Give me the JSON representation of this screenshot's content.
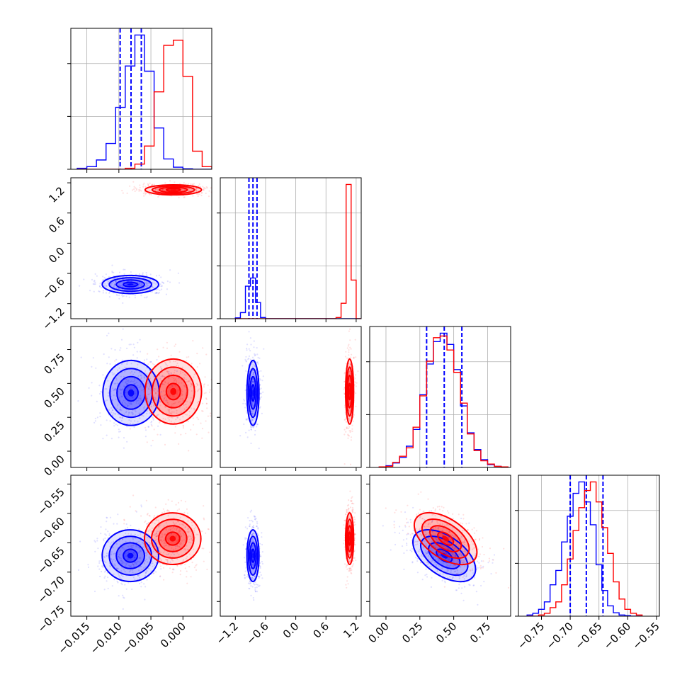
{
  "figure": {
    "type": "corner",
    "colors": {
      "series_a": "#0000ff",
      "series_b": "#ff0000",
      "grid": "#b0b0b0",
      "axes": "#000000"
    },
    "notes": "corner plot of 4 parameters, two posterior sample sets"
  },
  "chart_data": [
    {
      "type": "histogram",
      "panel": "hist-p1",
      "xlim": [
        -0.0175,
        0.0045
      ],
      "grid": true,
      "x_tick_labels_bottom": [],
      "bins": [
        -0.0165,
        -0.015,
        -0.0135,
        -0.012,
        -0.0105,
        -0.009,
        -0.0075,
        -0.006,
        -0.0045,
        -0.003,
        -0.0015,
        0.0,
        0.0015,
        0.003,
        0.0045
      ],
      "series": [
        {
          "color": "#0000ff",
          "counts": [
            2,
            5,
            18,
            50,
            120,
            200,
            260,
            190,
            80,
            20,
            4,
            1,
            0,
            0
          ],
          "quantiles": [
            -0.0098,
            -0.0081,
            -0.0065
          ]
        },
        {
          "color": "#ff0000",
          "counts": [
            0,
            0,
            0,
            0,
            0,
            2,
            10,
            45,
            150,
            240,
            250,
            180,
            35,
            5
          ],
          "quantiles": []
        }
      ]
    },
    {
      "type": "scatter-contour",
      "panel": "p1-vs-p2",
      "xlim": [
        -0.0175,
        0.0045
      ],
      "ylim": [
        -1.5,
        1.3
      ],
      "y_tick_labels": [
        "1.2",
        "0.6",
        "0.0",
        "−0.6",
        "−1.2"
      ],
      "y_ticks": [
        1.2,
        0.6,
        0.0,
        -0.6,
        -1.2
      ],
      "series": [
        {
          "color": "#0000ff",
          "center": [
            -0.0082,
            -0.82
          ],
          "spread": [
            0.0022,
            0.09
          ]
        },
        {
          "color": "#ff0000",
          "center": [
            -0.0015,
            1.06
          ],
          "spread": [
            0.0022,
            0.05
          ]
        }
      ]
    },
    {
      "type": "histogram",
      "panel": "hist-p2",
      "xlim": [
        -1.5,
        1.3
      ],
      "grid": true,
      "bins": [
        -1.2,
        -1.1,
        -1.0,
        -0.9,
        -0.8,
        -0.7,
        -0.6,
        -0.5,
        -0.4,
        -0.3,
        -0.2,
        -0.1,
        0.0,
        0.1,
        0.2,
        0.3,
        0.4,
        0.5,
        0.6,
        0.7,
        0.8,
        0.9,
        1.0,
        1.1,
        1.2,
        1.3
      ],
      "series": [
        {
          "color": "#0000ff",
          "counts": [
            2,
            15,
            80,
            100,
            40,
            3,
            0,
            0,
            0,
            0,
            0,
            0,
            0,
            0,
            0,
            0,
            0,
            0,
            0,
            0,
            0,
            0,
            0,
            0,
            0
          ],
          "quantiles": [
            -0.93,
            -0.85,
            -0.77
          ]
        },
        {
          "color": "#ff0000",
          "counts": [
            0,
            0,
            0,
            0,
            0,
            0,
            0,
            0,
            0,
            0,
            0,
            0,
            0,
            0,
            0,
            0,
            0,
            0,
            0,
            0,
            3,
            38,
            330,
            95,
            0
          ],
          "quantiles": []
        }
      ]
    },
    {
      "type": "scatter-contour",
      "panel": "p1-vs-p3",
      "xlim": [
        -0.0175,
        0.0045
      ],
      "ylim": [
        -0.12,
        0.92
      ],
      "y_tick_labels": [
        "0.75",
        "0.50",
        "0.25",
        "0.00"
      ],
      "y_ticks": [
        0.75,
        0.5,
        0.25,
        0.0
      ],
      "series": [
        {
          "color": "#0000ff",
          "center": [
            -0.0081,
            0.43
          ],
          "spread": [
            0.0022,
            0.12
          ]
        },
        {
          "color": "#ff0000",
          "center": [
            -0.0015,
            0.44
          ],
          "spread": [
            0.0022,
            0.12
          ]
        }
      ]
    },
    {
      "type": "scatter-contour",
      "panel": "p2-vs-p3",
      "xlim": [
        -1.5,
        1.3
      ],
      "ylim": [
        -0.12,
        0.92
      ],
      "series": [
        {
          "color": "#0000ff",
          "center": [
            -0.85,
            0.43
          ],
          "spread": [
            0.06,
            0.12
          ]
        },
        {
          "color": "#ff0000",
          "center": [
            1.07,
            0.44
          ],
          "spread": [
            0.04,
            0.12
          ]
        }
      ]
    },
    {
      "type": "histogram",
      "panel": "hist-p3",
      "xlim": [
        -0.12,
        0.92
      ],
      "grid": true,
      "bins": [
        -0.05,
        0.0,
        0.05,
        0.1,
        0.15,
        0.2,
        0.25,
        0.3,
        0.35,
        0.4,
        0.45,
        0.5,
        0.55,
        0.6,
        0.65,
        0.7,
        0.75,
        0.8,
        0.85,
        0.9
      ],
      "series": [
        {
          "color": "#0000ff",
          "counts": [
            1,
            3,
            8,
            18,
            38,
            68,
            130,
            185,
            225,
            240,
            220,
            175,
            110,
            62,
            32,
            14,
            5,
            2,
            1
          ],
          "quantiles": [
            0.3,
            0.43,
            0.56
          ]
        },
        {
          "color": "#ff0000",
          "counts": [
            1,
            2,
            9,
            20,
            35,
            72,
            128,
            190,
            232,
            235,
            210,
            170,
            115,
            60,
            30,
            12,
            6,
            2,
            1
          ],
          "quantiles": []
        }
      ]
    },
    {
      "type": "scatter-contour",
      "panel": "p1-vs-p4",
      "xlim": [
        -0.0175,
        0.0045
      ],
      "ylim": [
        -0.775,
        -0.535
      ],
      "x_tick_labels": [
        "−0.015",
        "−0.010",
        "−0.005",
        "0.000"
      ],
      "x_ticks": [
        -0.015,
        -0.01,
        -0.005,
        0.0
      ],
      "y_tick_labels": [
        "−0.55",
        "−0.60",
        "−0.65",
        "−0.70",
        "−0.75"
      ],
      "y_ticks": [
        -0.55,
        -0.6,
        -0.65,
        -0.7,
        -0.75
      ],
      "series": [
        {
          "color": "#0000ff",
          "center": [
            -0.0082,
            -0.672
          ],
          "spread": [
            0.0022,
            0.022
          ]
        },
        {
          "color": "#ff0000",
          "center": [
            -0.0016,
            -0.643
          ],
          "spread": [
            0.0022,
            0.022
          ]
        }
      ]
    },
    {
      "type": "scatter-contour",
      "panel": "p2-vs-p4",
      "xlim": [
        -1.5,
        1.3
      ],
      "ylim": [
        -0.775,
        -0.535
      ],
      "x_tick_labels": [
        "−1.2",
        "−0.6",
        "0.0",
        "0.6",
        "1.2"
      ],
      "x_ticks": [
        -1.2,
        -0.6,
        0.0,
        0.6,
        1.2
      ],
      "series": [
        {
          "color": "#0000ff",
          "center": [
            -0.85,
            -0.672
          ],
          "spread": [
            0.06,
            0.022
          ]
        },
        {
          "color": "#ff0000",
          "center": [
            1.07,
            -0.643
          ],
          "spread": [
            0.04,
            0.022
          ]
        }
      ]
    },
    {
      "type": "scatter-contour",
      "panel": "p3-vs-p4",
      "xlim": [
        -0.12,
        0.92
      ],
      "ylim": [
        -0.775,
        -0.535
      ],
      "x_tick_labels": [
        "0.00",
        "0.25",
        "0.50",
        "0.75"
      ],
      "x_ticks": [
        0.0,
        0.25,
        0.5,
        0.75
      ],
      "series": [
        {
          "color": "#0000ff",
          "center": [
            0.43,
            -0.672
          ],
          "spread": [
            0.12,
            0.022
          ],
          "correlation": -0.6
        },
        {
          "color": "#ff0000",
          "center": [
            0.44,
            -0.643
          ],
          "spread": [
            0.12,
            0.022
          ],
          "correlation": -0.6
        }
      ]
    },
    {
      "type": "histogram",
      "panel": "hist-p4",
      "xlim": [
        -0.79,
        -0.545
      ],
      "grid": true,
      "x_tick_labels": [
        "−0.75",
        "−0.70",
        "−0.65",
        "−0.60",
        "−0.55"
      ],
      "x_ticks": [
        -0.75,
        -0.7,
        -0.65,
        -0.6,
        -0.55
      ],
      "bins": [
        -0.775,
        -0.765,
        -0.755,
        -0.745,
        -0.735,
        -0.725,
        -0.715,
        -0.705,
        -0.695,
        -0.685,
        -0.675,
        -0.665,
        -0.655,
        -0.645,
        -0.635,
        -0.625,
        -0.615,
        -0.605,
        -0.595,
        -0.585,
        -0.575
      ],
      "series": [
        {
          "color": "#0000ff",
          "counts": [
            2,
            5,
            12,
            25,
            55,
            80,
            130,
            175,
            215,
            235,
            200,
            160,
            90,
            45,
            18,
            6,
            2,
            1,
            0,
            0
          ],
          "quantiles": [
            -0.7,
            -0.672,
            -0.643
          ]
        },
        {
          "color": "#ff0000",
          "counts": [
            0,
            0,
            2,
            5,
            15,
            25,
            55,
            100,
            150,
            190,
            220,
            235,
            200,
            155,
            110,
            60,
            30,
            12,
            5,
            2
          ],
          "quantiles": []
        }
      ]
    }
  ]
}
